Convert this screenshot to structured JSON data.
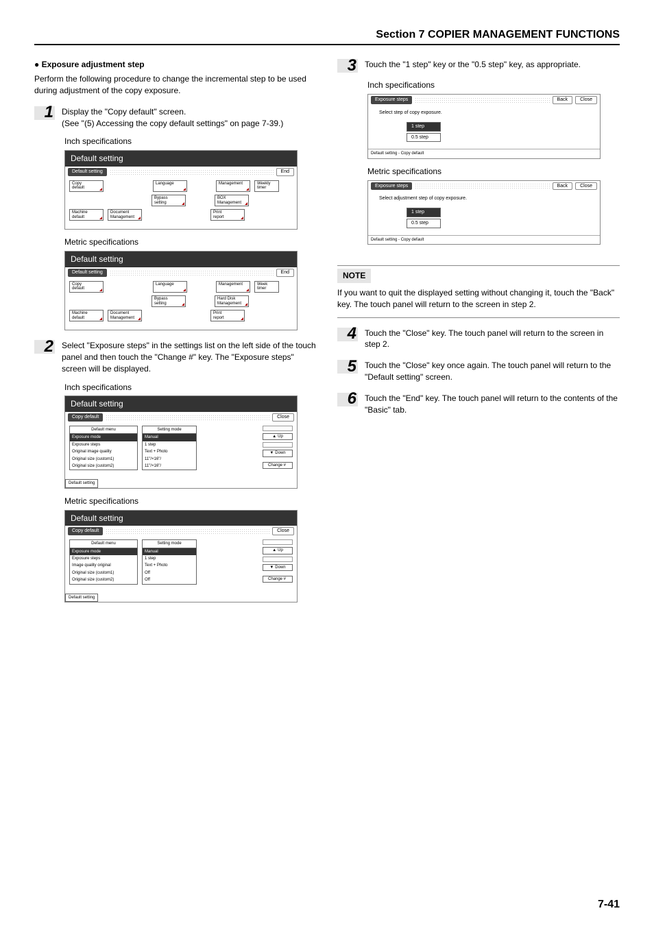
{
  "section_header": "Section 7  COPIER MANAGEMENT FUNCTIONS",
  "heading": "Exposure adjustment step",
  "intro": "Perform the following procedure to change the incremental step to be used during adjustment of the copy exposure.",
  "labels": {
    "inch": "Inch specifications",
    "metric": "Metric specifications"
  },
  "steps": {
    "s1": {
      "num": "1",
      "line1": "Display the \"Copy default\" screen.",
      "line2": "(See \"(5) Accessing the copy default settings\" on page 7-39.)"
    },
    "s2": {
      "num": "2",
      "text": "Select \"Exposure steps\" in the settings list on the left side of the touch panel and then touch the \"Change #\" key. The \"Exposure steps\" screen will be displayed."
    },
    "s3": {
      "num": "3",
      "line1": "Touch the \"1 step\" key or the \"0.5 step\" key, as appropriate."
    },
    "s4": {
      "num": "4",
      "text": "Touch the \"Close\" key. The touch panel will return to the screen in step 2."
    },
    "s5": {
      "num": "5",
      "text": "Touch the \"Close\" key once again. The touch panel will return to the \"Default setting\" screen."
    },
    "s6": {
      "num": "6",
      "text": "Touch the \"End\" key. The touch panel will return to the contents of the \"Basic\" tab."
    }
  },
  "note": {
    "label": "NOTE",
    "text": "If you want to quit the displayed setting without changing it, touch the \"Back\" key. The touch panel will return to the screen in step 2."
  },
  "page_num": "7-41",
  "screens": {
    "default_setting_title": "Default setting",
    "default_bar_label": "Default setting",
    "end_btn": "End",
    "close_btn": "Close",
    "back_btn": "Back",
    "tiles_inch": {
      "copy_default": "Copy\ndefault",
      "language": "Language",
      "management": "Management",
      "weekly_timer": "Weekly\ntimer",
      "bypass_setting": "Bypass\nsetting",
      "box_management": "BOX\nManagement",
      "machine_default": "Machine\ndefault",
      "document_management": "Document\nManagement",
      "print_report": "Print\nreport"
    },
    "tiles_metric": {
      "week_timer": "Week\ntimer",
      "hard_disk_mgmt": "Hard Disk\nManagement"
    },
    "copy_default_bar": "Copy default",
    "list_headers": {
      "menu": "Default menu",
      "mode": "Setting mode"
    },
    "list_inch": {
      "rows": [
        [
          "Exposure mode",
          "Manual"
        ],
        [
          "Exposure steps",
          "1 step"
        ],
        [
          "Original image quality",
          "Text + Photo"
        ],
        [
          "Original size (custom1)",
          "11\"/×16\"/"
        ],
        [
          "Original size (custom2)",
          "11\"/×16\"/"
        ]
      ]
    },
    "list_metric": {
      "rows": [
        [
          "Exposure mode",
          "Manual"
        ],
        [
          "Exposure steps",
          "1 step"
        ],
        [
          "Image quality original",
          "Text + Photo"
        ],
        [
          "Original size (custom1)",
          "Off"
        ],
        [
          "Original size (custom2)",
          "Off"
        ]
      ]
    },
    "nav": {
      "up": "Up",
      "down": "Down",
      "change": "Change #"
    },
    "footer_chip": "Default setting",
    "step3": {
      "bar_label": "Exposure steps",
      "prompt_inch": "Select step of copy exposure.",
      "prompt_metric": "Select adjustment step of copy exposure.",
      "opt1": "1 step",
      "opt05": "0.5 step",
      "footer": "Default setting - Copy default"
    }
  }
}
